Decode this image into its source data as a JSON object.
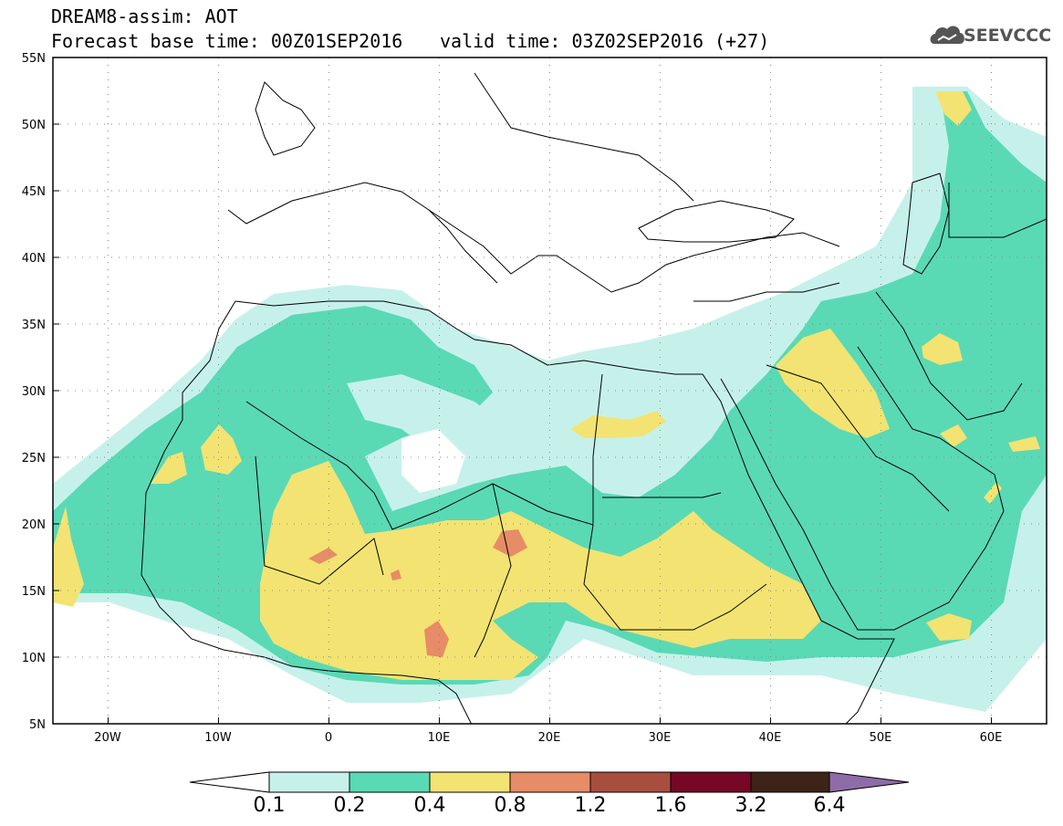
{
  "header": {
    "title": "DREAM8-assim: AOT",
    "base_time": "Forecast base time: 00Z01SEP2016",
    "valid_time": "valid time: 03Z02SEP2016 (+27)",
    "logo_text": "SEEVCCC",
    "logo_icon": "cloud-icon"
  },
  "map": {
    "lon_labels": [
      "20W",
      "10W",
      "0",
      "10E",
      "20E",
      "30E",
      "40E",
      "50E",
      "60E"
    ],
    "lat_labels": [
      "55N",
      "50N",
      "45N",
      "40N",
      "35N",
      "30N",
      "25N",
      "20N",
      "15N",
      "10N",
      "5N"
    ],
    "lon_range": [
      -25,
      65
    ],
    "lat_range": [
      5,
      55
    ],
    "grid": "dotted"
  },
  "colorbar": {
    "levels": [
      "0.1",
      "0.2",
      "0.4",
      "0.8",
      "1.2",
      "1.6",
      "3.2",
      "6.4"
    ],
    "colors": [
      "#ffffff",
      "#c6f1ea",
      "#5ad9b5",
      "#f3e372",
      "#e68c66",
      "#a84e3f",
      "#760727",
      "#3e2318",
      "#8e6ca7"
    ]
  }
}
